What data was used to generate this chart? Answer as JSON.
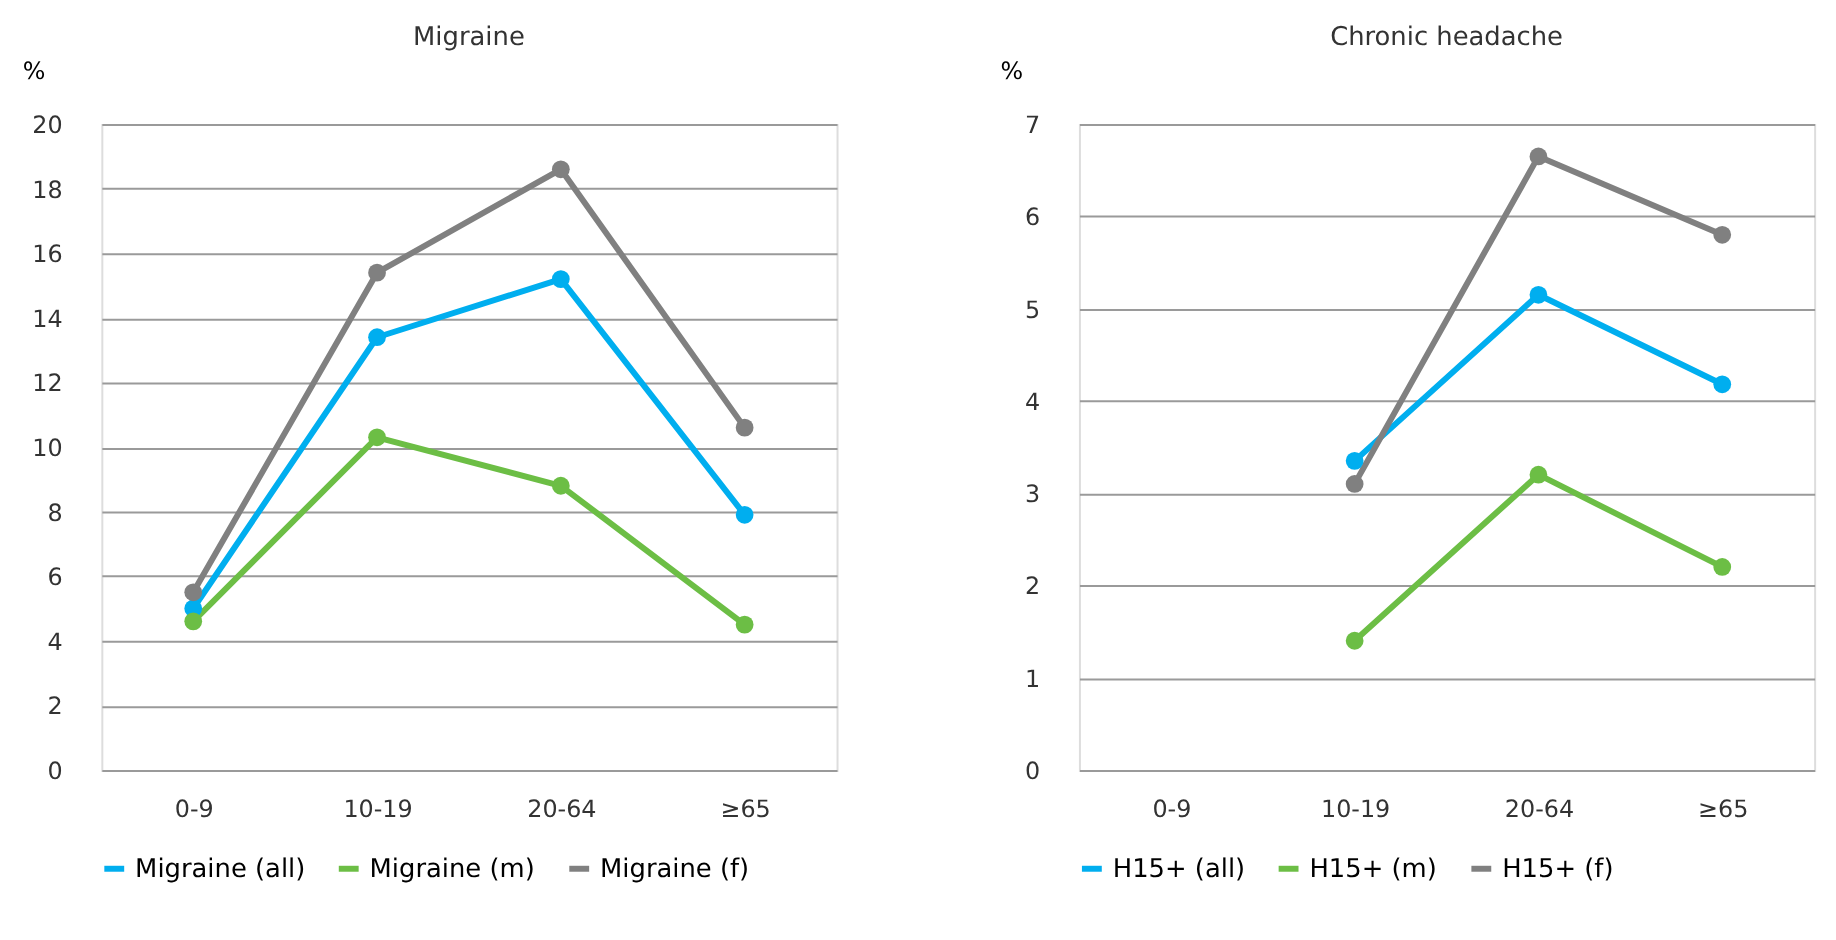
{
  "chart_data": [
    {
      "type": "line",
      "title": "Migraine",
      "ylabel": "%",
      "categories": [
        "0-9",
        "10-19",
        "20-64",
        "≥65"
      ],
      "ylim": [
        0,
        20
      ],
      "yticks": [
        0,
        2,
        4,
        6,
        8,
        10,
        12,
        14,
        16,
        18,
        20
      ],
      "grid": "y",
      "legend": "bottom",
      "marker": "circle",
      "line_style": "solid",
      "series": [
        {
          "name": "Migraine (all)",
          "color": "#00aeef",
          "values": [
            5.0,
            13.4,
            15.2,
            7.9
          ]
        },
        {
          "name": "Migraine (m)",
          "color": "#6cbe45",
          "values": [
            4.6,
            10.3,
            8.8,
            4.5
          ]
        },
        {
          "name": "Migraine (f)",
          "color": "#808080",
          "values": [
            5.5,
            15.4,
            18.6,
            10.6
          ]
        }
      ]
    },
    {
      "type": "line",
      "title": "Chronic headache",
      "ylabel": "%",
      "categories": [
        "0-9",
        "10-19",
        "20-64",
        "≥65"
      ],
      "ylim": [
        0,
        7
      ],
      "yticks": [
        0,
        1,
        2,
        3,
        4,
        5,
        6,
        7
      ],
      "grid": "y",
      "legend": "bottom",
      "marker": "circle",
      "line_style": "solid",
      "series": [
        {
          "name": "H15+ (all)",
          "color": "#00aeef",
          "values": [
            null,
            3.35,
            5.15,
            4.18
          ]
        },
        {
          "name": "H15+ (m)",
          "color": "#6cbe45",
          "values": [
            null,
            1.4,
            3.2,
            2.2
          ]
        },
        {
          "name": "H15+ (f)",
          "color": "#808080",
          "values": [
            null,
            3.1,
            6.65,
            5.8
          ]
        }
      ]
    }
  ]
}
